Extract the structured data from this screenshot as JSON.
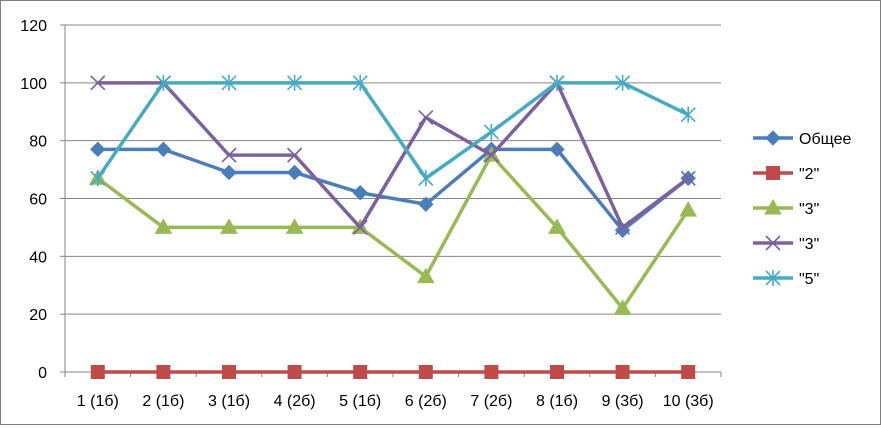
{
  "chart_data": {
    "type": "line",
    "title": "",
    "xlabel": "",
    "ylabel": "",
    "categories": [
      "1 (1б)",
      "2 (1б)",
      "3 (1б)",
      "4 (2б)",
      "5 (1б)",
      "6 (2б)",
      "7 (2б)",
      "8 (1б)",
      "9 (3б)",
      "10 (3б)"
    ],
    "ylim": [
      0,
      120
    ],
    "yticks": [
      0,
      20,
      40,
      60,
      80,
      100,
      120
    ],
    "grid": "horizontal",
    "legend_position": "right",
    "series": [
      {
        "name": "Общее",
        "color": "#4a7ebb",
        "marker": "diamond",
        "values": [
          77,
          77,
          69,
          69,
          62,
          58,
          77,
          77,
          49,
          67
        ]
      },
      {
        "name": "\"2\"",
        "color": "#be4b48",
        "marker": "square",
        "values": [
          0,
          0,
          0,
          0,
          0,
          0,
          0,
          0,
          0,
          0
        ]
      },
      {
        "name": "\"3\"",
        "color": "#98b954",
        "marker": "triangle",
        "values": [
          67,
          50,
          50,
          50,
          50,
          33,
          75,
          50,
          22,
          56
        ]
      },
      {
        "name": "\"3\"",
        "color": "#7d60a0",
        "marker": "x",
        "values": [
          100,
          100,
          75,
          75,
          50,
          88,
          75,
          100,
          50,
          67
        ]
      },
      {
        "name": "\"5\"",
        "color": "#46aac5",
        "marker": "star",
        "values": [
          67,
          100,
          100,
          100,
          100,
          67,
          83,
          100,
          100,
          89
        ]
      }
    ]
  }
}
